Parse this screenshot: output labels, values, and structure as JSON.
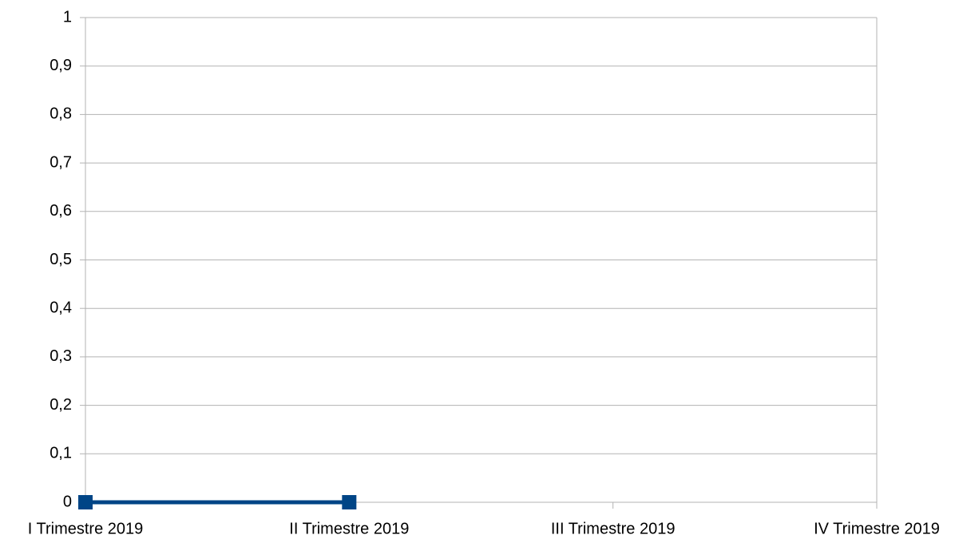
{
  "chart_data": {
    "type": "line",
    "categories": [
      "I Trimestre 2019",
      "II Trimestre 2019",
      "III Trimestre 2019",
      "IV Trimestre 2019"
    ],
    "values": [
      0,
      0,
      null,
      null
    ],
    "color": "#004586",
    "ylim": [
      0,
      1
    ],
    "yticks": [
      0,
      {
        "value": 0.1,
        "label": "0,1"
      },
      {
        "value": 0.2,
        "label": "0,2"
      },
      {
        "value": 0.3,
        "label": "0,3"
      },
      {
        "value": 0.4,
        "label": "0,4"
      },
      {
        "value": 0.5,
        "label": "0,5"
      },
      {
        "value": 0.6,
        "label": "0,6"
      },
      {
        "value": 0.7,
        "label": "0,7"
      },
      {
        "value": 0.8,
        "label": "0,8"
      },
      {
        "value": 0.9,
        "label": "0,9"
      },
      1
    ],
    "grid": true
  }
}
